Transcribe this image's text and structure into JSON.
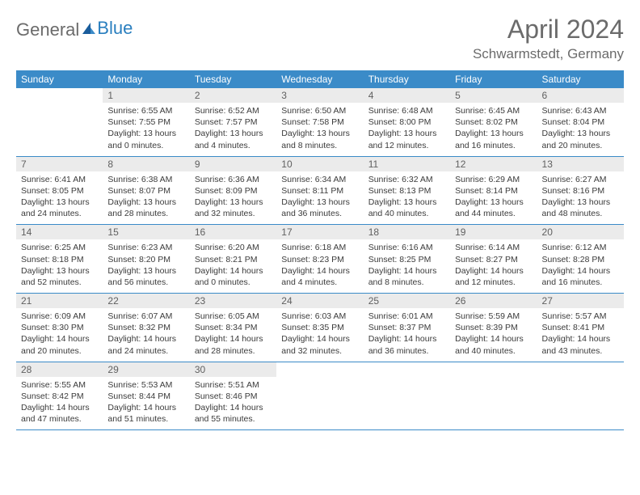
{
  "brand": {
    "part1": "General",
    "part2": "Blue",
    "part1_color": "#6b6b6b",
    "part2_color": "#2a7fbf"
  },
  "title": "April 2024",
  "location": "Schwarmstedt, Germany",
  "colors": {
    "header_bg": "#3b8bc8",
    "header_text": "#ffffff",
    "cell_border": "#3b8bc8",
    "daynum_bg": "#ebebeb",
    "daynum_text": "#606060",
    "body_text": "#3b3b3b",
    "page_bg": "#ffffff",
    "title_text": "#6b6b6b"
  },
  "typography": {
    "title_fontsize": 32,
    "location_fontsize": 17,
    "header_fontsize": 12,
    "daynum_fontsize": 12,
    "body_fontsize": 10.5
  },
  "day_headers": [
    "Sunday",
    "Monday",
    "Tuesday",
    "Wednesday",
    "Thursday",
    "Friday",
    "Saturday"
  ],
  "weeks": [
    [
      null,
      {
        "n": "1",
        "sr": "6:55 AM",
        "ss": "7:55 PM",
        "dl": "13 hours and 0 minutes."
      },
      {
        "n": "2",
        "sr": "6:52 AM",
        "ss": "7:57 PM",
        "dl": "13 hours and 4 minutes."
      },
      {
        "n": "3",
        "sr": "6:50 AM",
        "ss": "7:58 PM",
        "dl": "13 hours and 8 minutes."
      },
      {
        "n": "4",
        "sr": "6:48 AM",
        "ss": "8:00 PM",
        "dl": "13 hours and 12 minutes."
      },
      {
        "n": "5",
        "sr": "6:45 AM",
        "ss": "8:02 PM",
        "dl": "13 hours and 16 minutes."
      },
      {
        "n": "6",
        "sr": "6:43 AM",
        "ss": "8:04 PM",
        "dl": "13 hours and 20 minutes."
      }
    ],
    [
      {
        "n": "7",
        "sr": "6:41 AM",
        "ss": "8:05 PM",
        "dl": "13 hours and 24 minutes."
      },
      {
        "n": "8",
        "sr": "6:38 AM",
        "ss": "8:07 PM",
        "dl": "13 hours and 28 minutes."
      },
      {
        "n": "9",
        "sr": "6:36 AM",
        "ss": "8:09 PM",
        "dl": "13 hours and 32 minutes."
      },
      {
        "n": "10",
        "sr": "6:34 AM",
        "ss": "8:11 PM",
        "dl": "13 hours and 36 minutes."
      },
      {
        "n": "11",
        "sr": "6:32 AM",
        "ss": "8:13 PM",
        "dl": "13 hours and 40 minutes."
      },
      {
        "n": "12",
        "sr": "6:29 AM",
        "ss": "8:14 PM",
        "dl": "13 hours and 44 minutes."
      },
      {
        "n": "13",
        "sr": "6:27 AM",
        "ss": "8:16 PM",
        "dl": "13 hours and 48 minutes."
      }
    ],
    [
      {
        "n": "14",
        "sr": "6:25 AM",
        "ss": "8:18 PM",
        "dl": "13 hours and 52 minutes."
      },
      {
        "n": "15",
        "sr": "6:23 AM",
        "ss": "8:20 PM",
        "dl": "13 hours and 56 minutes."
      },
      {
        "n": "16",
        "sr": "6:20 AM",
        "ss": "8:21 PM",
        "dl": "14 hours and 0 minutes."
      },
      {
        "n": "17",
        "sr": "6:18 AM",
        "ss": "8:23 PM",
        "dl": "14 hours and 4 minutes."
      },
      {
        "n": "18",
        "sr": "6:16 AM",
        "ss": "8:25 PM",
        "dl": "14 hours and 8 minutes."
      },
      {
        "n": "19",
        "sr": "6:14 AM",
        "ss": "8:27 PM",
        "dl": "14 hours and 12 minutes."
      },
      {
        "n": "20",
        "sr": "6:12 AM",
        "ss": "8:28 PM",
        "dl": "14 hours and 16 minutes."
      }
    ],
    [
      {
        "n": "21",
        "sr": "6:09 AM",
        "ss": "8:30 PM",
        "dl": "14 hours and 20 minutes."
      },
      {
        "n": "22",
        "sr": "6:07 AM",
        "ss": "8:32 PM",
        "dl": "14 hours and 24 minutes."
      },
      {
        "n": "23",
        "sr": "6:05 AM",
        "ss": "8:34 PM",
        "dl": "14 hours and 28 minutes."
      },
      {
        "n": "24",
        "sr": "6:03 AM",
        "ss": "8:35 PM",
        "dl": "14 hours and 32 minutes."
      },
      {
        "n": "25",
        "sr": "6:01 AM",
        "ss": "8:37 PM",
        "dl": "14 hours and 36 minutes."
      },
      {
        "n": "26",
        "sr": "5:59 AM",
        "ss": "8:39 PM",
        "dl": "14 hours and 40 minutes."
      },
      {
        "n": "27",
        "sr": "5:57 AM",
        "ss": "8:41 PM",
        "dl": "14 hours and 43 minutes."
      }
    ],
    [
      {
        "n": "28",
        "sr": "5:55 AM",
        "ss": "8:42 PM",
        "dl": "14 hours and 47 minutes."
      },
      {
        "n": "29",
        "sr": "5:53 AM",
        "ss": "8:44 PM",
        "dl": "14 hours and 51 minutes."
      },
      {
        "n": "30",
        "sr": "5:51 AM",
        "ss": "8:46 PM",
        "dl": "14 hours and 55 minutes."
      },
      null,
      null,
      null,
      null
    ]
  ],
  "labels": {
    "sunrise_prefix": "Sunrise: ",
    "sunset_prefix": "Sunset: ",
    "daylight_prefix": "Daylight: "
  }
}
